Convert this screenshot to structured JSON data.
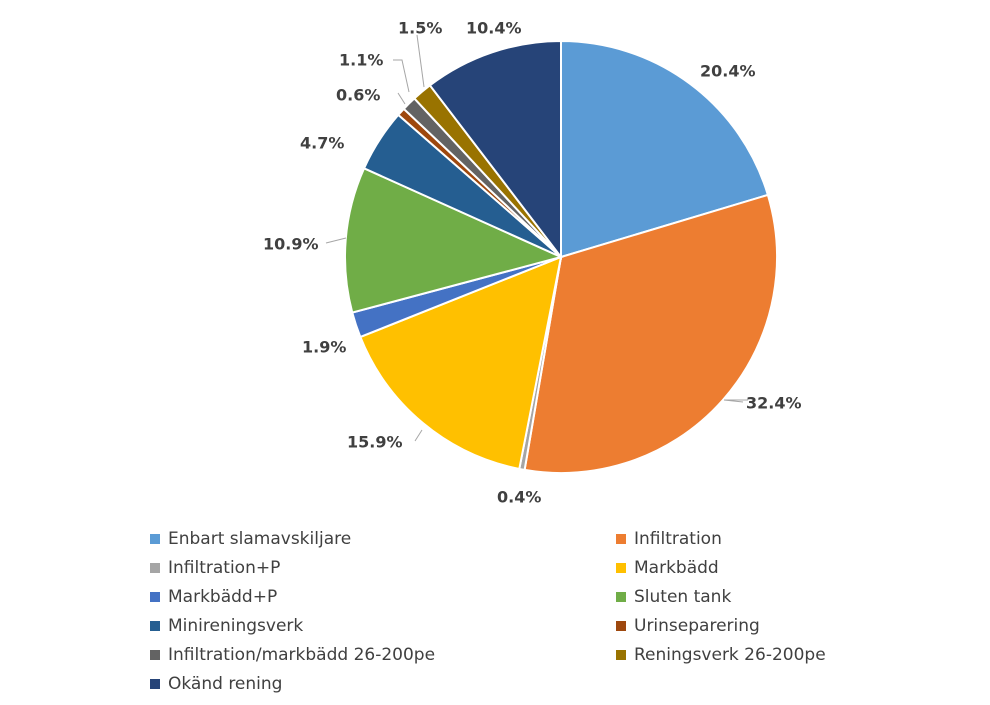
{
  "chart_data": {
    "type": "pie",
    "title": "",
    "slices": [
      {
        "name": "Enbart slamavskiljare",
        "value": 20.4,
        "label": "20.4%",
        "color": "#5B9BD5"
      },
      {
        "name": "Infiltration",
        "value": 32.4,
        "label": "32.4%",
        "color": "#ED7D31"
      },
      {
        "name": "Infiltration+P",
        "value": 0.4,
        "label": "0.4%",
        "color": "#A5A5A5"
      },
      {
        "name": "Markbädd",
        "value": 15.9,
        "label": "15.9%",
        "color": "#FFC000"
      },
      {
        "name": "Markbädd+P",
        "value": 1.9,
        "label": "1.9%",
        "color": "#4472C4"
      },
      {
        "name": "Sluten tank",
        "value": 10.9,
        "label": "10.9%",
        "color": "#70AD47"
      },
      {
        "name": "Minireningsverk",
        "value": 4.7,
        "label": "4.7%",
        "color": "#255E91"
      },
      {
        "name": "Urinseparering",
        "value": 0.6,
        "label": "0.6%",
        "color": "#9E480E"
      },
      {
        "name": "Infiltration/markbädd 26-200pe",
        "value": 1.1,
        "label": "1.1%",
        "color": "#636363"
      },
      {
        "name": "Reningsverk 26-200pe",
        "value": 1.5,
        "label": "1.5%",
        "color": "#997300"
      },
      {
        "name": "Okänd rening",
        "value": 10.4,
        "label": "10.4%",
        "color": "#264478"
      }
    ],
    "legend_position": "bottom"
  }
}
